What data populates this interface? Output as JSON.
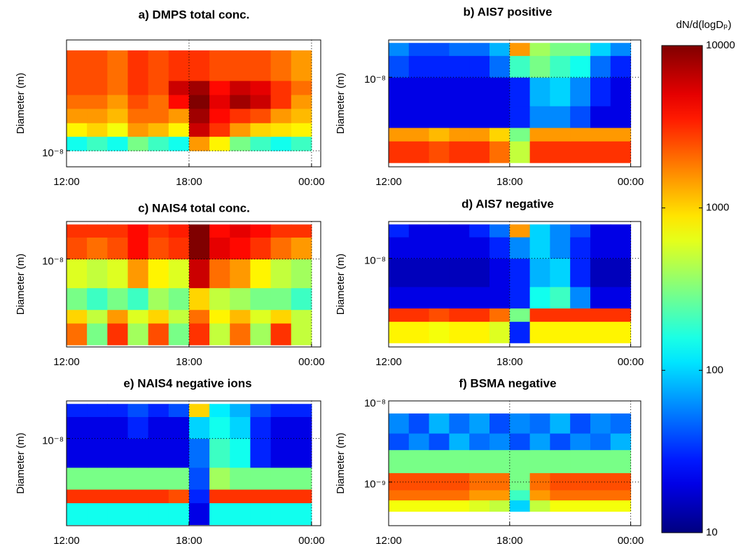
{
  "chart_data": [
    {
      "type": "heatmap",
      "title": "a) DMPS  total conc.",
      "ylabel": "Diameter (m)",
      "log_y": true,
      "grid": true,
      "xlim": [
        12,
        24.45
      ],
      "xticks": [
        {
          "value": 12,
          "label": "12:00"
        },
        {
          "value": 18,
          "label": "18:00"
        },
        {
          "value": 24,
          "label": "00:00"
        }
      ],
      "ylim": [
        5.9e-09,
        3.8e-07
      ],
      "yticks": [
        {
          "value": 1e-08,
          "label": "10⁻⁸"
        }
      ],
      "x_edges": [
        12,
        13,
        14,
        15,
        16,
        17,
        18,
        19,
        20,
        21,
        22,
        23,
        24
      ],
      "y_edges": [
        1e-08,
        1.6e-08,
        2.5e-08,
        4e-08,
        6.3e-08,
        1e-07,
        2.7e-07
      ],
      "z": [
        [
          150,
          200,
          150,
          300,
          200,
          150,
          1500,
          800,
          300,
          200,
          150,
          200
        ],
        [
          800,
          1000,
          700,
          1500,
          1200,
          800,
          6000,
          3000,
          1500,
          1000,
          900,
          800
        ],
        [
          1500,
          1500,
          1200,
          2000,
          2000,
          1500,
          8000,
          4000,
          3000,
          2500,
          1500,
          1200
        ],
        [
          2000,
          2000,
          1500,
          2500,
          2000,
          4000,
          10000,
          5000,
          8000,
          6000,
          3000,
          1500
        ],
        [
          2500,
          2500,
          2000,
          3000,
          2500,
          6000,
          8000,
          4000,
          6000,
          5000,
          3000,
          2000
        ],
        [
          2500,
          2500,
          2000,
          3000,
          2500,
          3000,
          3000,
          2500,
          2500,
          2500,
          2000,
          1500
        ]
      ]
    },
    {
      "type": "heatmap",
      "title": "b) AIS7 positive",
      "ylabel": "Diameter (m)",
      "log_y": true,
      "grid": true,
      "xlim": [
        12,
        24.5
      ],
      "xticks": [
        {
          "value": 12,
          "label": "12:00"
        },
        {
          "value": 18,
          "label": "18:00"
        },
        {
          "value": 24,
          "label": "00:00"
        }
      ],
      "ylim": [
        5.7e-10,
        3.3e-08
      ],
      "yticks": [
        {
          "value": 1e-08,
          "label": "10⁻⁸"
        }
      ],
      "x_edges": [
        12,
        13,
        14,
        15,
        16,
        17,
        18,
        19,
        20,
        21,
        22,
        23,
        24
      ],
      "y_edges": [
        6.5e-10,
        1.3e-09,
        2e-09,
        4e-09,
        1e-08,
        2e-08,
        3e-08
      ],
      "z": [
        [
          3000,
          3000,
          2500,
          3000,
          3000,
          2000,
          500,
          3000,
          3000,
          3000,
          3000,
          3000
        ],
        [
          1500,
          1500,
          1200,
          1500,
          1500,
          1000,
          300,
          1500,
          1500,
          1500,
          1500,
          1500
        ],
        [
          20,
          20,
          20,
          20,
          20,
          20,
          30,
          60,
          60,
          40,
          20,
          20
        ],
        [
          20,
          20,
          20,
          20,
          20,
          20,
          30,
          80,
          100,
          60,
          30,
          20
        ],
        [
          40,
          30,
          30,
          30,
          30,
          50,
          200,
          300,
          200,
          150,
          50,
          30
        ],
        [
          60,
          40,
          40,
          50,
          50,
          80,
          1500,
          400,
          300,
          300,
          100,
          60
        ]
      ]
    },
    {
      "type": "heatmap",
      "title": "c) NAIS4 total conc.",
      "ylabel": "Diameter (m)",
      "log_y": true,
      "grid": true,
      "xlim": [
        12,
        24.45
      ],
      "xticks": [
        {
          "value": 12,
          "label": "12:00"
        },
        {
          "value": 18,
          "label": "18:00"
        },
        {
          "value": 24,
          "label": "00:00"
        }
      ],
      "ylim": [
        6.1e-10,
        3.3e-08
      ],
      "yticks": [
        {
          "value": 1e-08,
          "label": "10⁻⁸"
        }
      ],
      "x_edges": [
        12,
        13,
        14,
        15,
        16,
        17,
        18,
        19,
        20,
        21,
        22,
        23,
        24
      ],
      "y_edges": [
        6.5e-10,
        1.3e-09,
        2e-09,
        4e-09,
        1e-08,
        2e-08,
        3e-08
      ],
      "z": [
        [
          2000,
          300,
          3000,
          400,
          2500,
          300,
          3000,
          500,
          2000,
          400,
          3000,
          500
        ],
        [
          1000,
          500,
          1500,
          600,
          1000,
          500,
          2000,
          800,
          1200,
          600,
          1000,
          500
        ],
        [
          300,
          200,
          300,
          200,
          400,
          300,
          1000,
          500,
          400,
          300,
          300,
          200
        ],
        [
          600,
          500,
          600,
          1500,
          800,
          600,
          6000,
          2000,
          1500,
          800,
          500,
          400
        ],
        [
          2500,
          2000,
          2500,
          4000,
          2500,
          3000,
          10000,
          5000,
          4000,
          3000,
          2000,
          1500
        ],
        [
          3000,
          3000,
          3000,
          4000,
          3000,
          3500,
          10000,
          4000,
          5000,
          4000,
          3000,
          3000
        ]
      ]
    },
    {
      "type": "heatmap",
      "title": "d) AIS7 negative",
      "ylabel": "Diameter (m)",
      "log_y": true,
      "grid": true,
      "xlim": [
        12,
        24.5
      ],
      "xticks": [
        {
          "value": 12,
          "label": "12:00"
        },
        {
          "value": 18,
          "label": "18:00"
        },
        {
          "value": 24,
          "label": "00:00"
        }
      ],
      "ylim": [
        5.7e-10,
        3.3e-08
      ],
      "yticks": [
        {
          "value": 1e-08,
          "label": "10⁻⁸"
        }
      ],
      "x_edges": [
        12,
        13,
        14,
        15,
        16,
        17,
        18,
        19,
        20,
        21,
        22,
        23,
        24
      ],
      "y_edges": [
        6.5e-10,
        1.3e-09,
        2e-09,
        4e-09,
        1e-08,
        2e-08,
        3e-08
      ],
      "z": [
        [
          800,
          800,
          700,
          800,
          800,
          600,
          30,
          800,
          800,
          800,
          800,
          800
        ],
        [
          3000,
          3000,
          2500,
          3000,
          3000,
          2000,
          300,
          3000,
          3000,
          3000,
          3000,
          3000
        ],
        [
          20,
          20,
          20,
          20,
          20,
          20,
          30,
          150,
          200,
          60,
          20,
          20
        ],
        [
          15,
          15,
          15,
          15,
          15,
          20,
          30,
          80,
          100,
          30,
          15,
          15
        ],
        [
          20,
          20,
          20,
          20,
          20,
          30,
          60,
          100,
          60,
          30,
          20,
          20
        ],
        [
          30,
          20,
          20,
          20,
          30,
          50,
          1500,
          100,
          60,
          40,
          20,
          20
        ]
      ]
    },
    {
      "type": "heatmap",
      "title": "e) NAIS4 negative ions",
      "ylabel": "Diameter (m)",
      "log_y": true,
      "grid": true,
      "xlim": [
        12,
        24.45
      ],
      "xticks": [
        {
          "value": 12,
          "label": "12:00"
        },
        {
          "value": 18,
          "label": "18:00"
        },
        {
          "value": 24,
          "label": "00:00"
        }
      ],
      "ylim": [
        6.3e-10,
        3.3e-08
      ],
      "yticks": [
        {
          "value": 1e-08,
          "label": "10⁻⁸"
        }
      ],
      "x_edges": [
        12,
        13,
        14,
        15,
        16,
        17,
        18,
        19,
        20,
        21,
        22,
        23,
        24
      ],
      "y_edges": [
        6.5e-10,
        1.3e-09,
        2e-09,
        4e-09,
        1e-08,
        2e-08,
        3e-08
      ],
      "z": [
        [
          150,
          150,
          150,
          150,
          150,
          150,
          20,
          150,
          150,
          150,
          150,
          150
        ],
        [
          3000,
          3000,
          3000,
          3000,
          3000,
          2500,
          30,
          3000,
          3000,
          3000,
          3000,
          3000
        ],
        [
          300,
          300,
          300,
          300,
          300,
          300,
          40,
          400,
          300,
          300,
          300,
          300
        ],
        [
          20,
          20,
          20,
          20,
          20,
          20,
          50,
          200,
          150,
          30,
          20,
          20
        ],
        [
          20,
          20,
          20,
          30,
          20,
          20,
          100,
          150,
          100,
          30,
          20,
          20
        ],
        [
          30,
          30,
          30,
          40,
          30,
          40,
          1000,
          120,
          80,
          40,
          30,
          30
        ]
      ]
    },
    {
      "type": "heatmap",
      "title": "f) BSMA negative",
      "ylabel": "Diameter (m)",
      "log_y": true,
      "grid": true,
      "xlim": [
        12,
        24.5
      ],
      "xticks": [
        {
          "value": 12,
          "label": "12:00"
        },
        {
          "value": 18,
          "label": "18:00"
        },
        {
          "value": 24,
          "label": "00:00"
        }
      ],
      "ylim": [
        2.9e-10,
        1e-08
      ],
      "yticks": [
        {
          "value": 1e-09,
          "label": "10⁻⁹"
        },
        {
          "value": 1e-08,
          "label": "10⁻⁸"
        }
      ],
      "x_edges": [
        12,
        13,
        14,
        15,
        16,
        17,
        18,
        19,
        20,
        21,
        22,
        23,
        24
      ],
      "y_edges": [
        4.35e-10,
        6e-10,
        8e-10,
        1.3e-09,
        2.5e-09,
        4e-09,
        7e-09
      ],
      "z": [
        [
          700,
          700,
          700,
          700,
          600,
          500,
          100,
          500,
          700,
          700,
          700,
          700
        ],
        [
          2000,
          2000,
          2000,
          2000,
          1500,
          1500,
          200,
          1500,
          2000,
          2000,
          2000,
          2000
        ],
        [
          2500,
          2500,
          2500,
          2500,
          2000,
          2000,
          300,
          2000,
          2500,
          2500,
          2500,
          2500
        ],
        [
          300,
          300,
          300,
          300,
          300,
          300,
          300,
          300,
          300,
          300,
          300,
          300
        ],
        [
          40,
          60,
          40,
          80,
          50,
          60,
          40,
          70,
          40,
          60,
          50,
          80
        ],
        [
          60,
          40,
          80,
          50,
          70,
          40,
          60,
          50,
          80,
          40,
          60,
          50
        ]
      ]
    }
  ],
  "colorbar": {
    "label": "dN/d(logDₚ)",
    "log": true,
    "lim": [
      10,
      10000
    ],
    "ticks": [
      10,
      100,
      1000,
      10000
    ],
    "colormap": "jet"
  }
}
